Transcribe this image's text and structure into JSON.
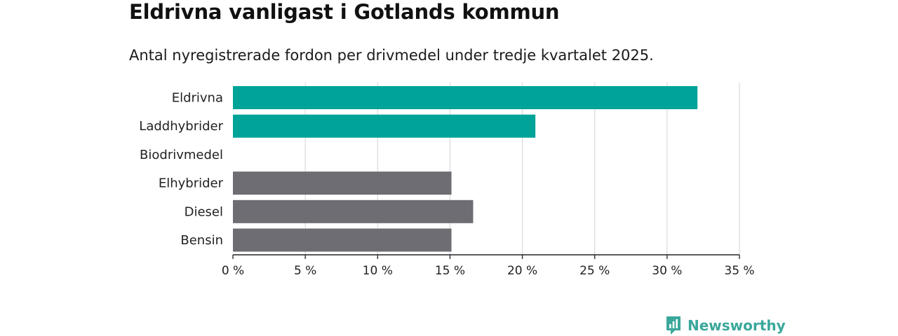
{
  "chart_data": {
    "type": "bar",
    "orientation": "horizontal",
    "title": "Eldrivna vanligast i Gotlands kommun",
    "subtitle": "Antal nyregistrerade fordon per drivmedel under tredje kvartalet 2025.",
    "categories": [
      "Eldrivna",
      "Laddhybrider",
      "Biodrivmedel",
      "Elhybrider",
      "Diesel",
      "Bensin"
    ],
    "values": [
      32.1,
      20.9,
      0,
      15.1,
      16.6,
      15.1
    ],
    "bar_colors": [
      "#00a398",
      "#00a398",
      "#00a398",
      "#6e6d73",
      "#6e6d73",
      "#6e6d73"
    ],
    "xlim": [
      0,
      35
    ],
    "xticks": [
      0,
      5,
      10,
      15,
      20,
      25,
      30,
      35
    ],
    "xtick_labels": [
      "0 %",
      "5 %",
      "10 %",
      "15 %",
      "20 %",
      "25 %",
      "30 %",
      "35 %"
    ],
    "xlabel": "",
    "ylabel": "",
    "grid": true
  },
  "brand": {
    "name": "Newsworthy",
    "logo_icon": "newsworthy-logo-icon",
    "color": "#3aa79b"
  }
}
